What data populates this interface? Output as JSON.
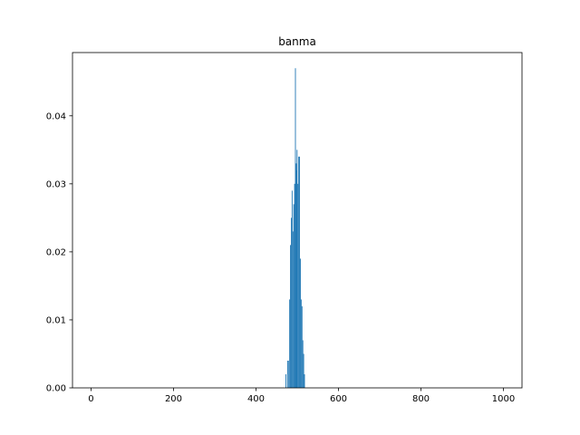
{
  "chart_data": {
    "type": "bar",
    "title": "banma",
    "xlabel": "",
    "ylabel": "",
    "xlim": [
      -45,
      1045
    ],
    "ylim": [
      0,
      0.0493
    ],
    "xticks": [
      0,
      200,
      400,
      600,
      800,
      1000
    ],
    "yticks": [
      0.0,
      0.01,
      0.02,
      0.03,
      0.04
    ],
    "ytick_labels": [
      "0.00",
      "0.01",
      "0.02",
      "0.03",
      "0.04"
    ],
    "grid": false,
    "bar_color": "#1f77b4",
    "bar_width": 0.8,
    "x": [
      472,
      476,
      478,
      481,
      483,
      485,
      487,
      489,
      491,
      493,
      495,
      497,
      498,
      499,
      501,
      503,
      505,
      507,
      509,
      511,
      513,
      515,
      517,
      519,
      521
    ],
    "values": [
      0.002,
      0.004,
      0.004,
      0.013,
      0.021,
      0.025,
      0.029,
      0.023,
      0.027,
      0.03,
      0.047,
      0.033,
      0.032,
      0.035,
      0.03,
      0.034,
      0.034,
      0.019,
      0.013,
      0.012,
      0.007,
      0.005,
      0.002,
      0.0,
      0.0
    ]
  }
}
